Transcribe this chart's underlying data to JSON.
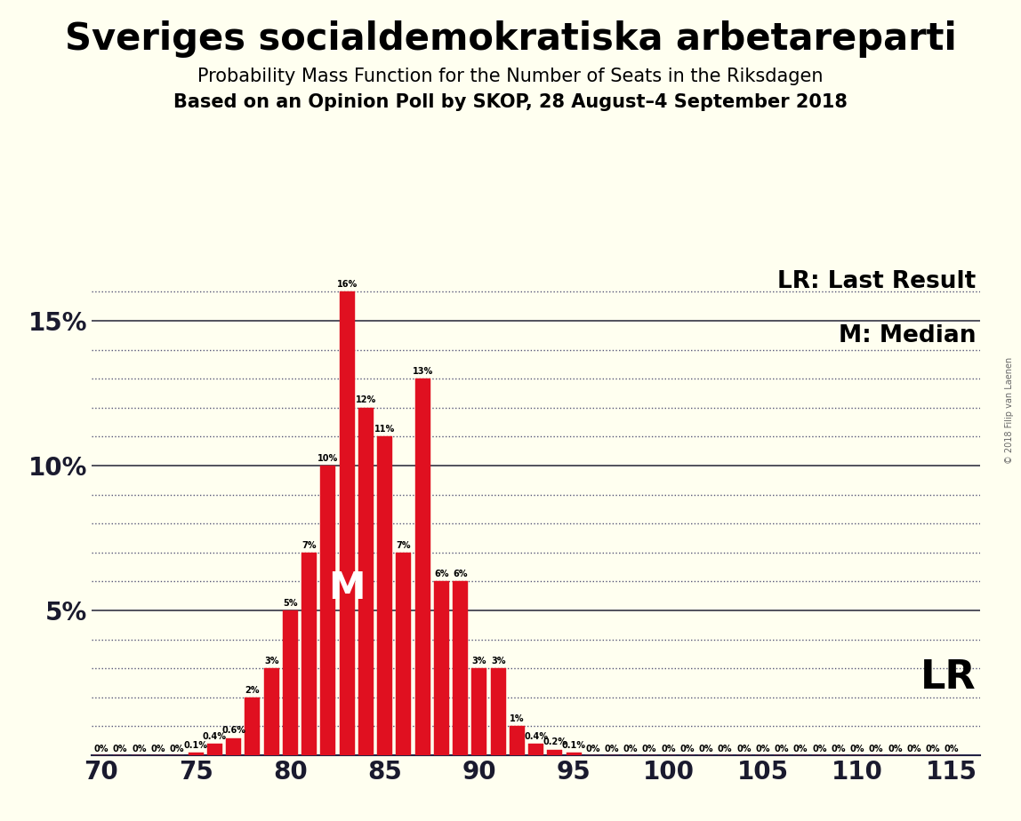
{
  "title": "Sveriges socialdemokratiska arbetareparti",
  "subtitle1": "Probability Mass Function for the Number of Seats in the Riksdagen",
  "subtitle2": "Based on an Opinion Poll by SKOP, 28 August–4 September 2018",
  "watermark": "© 2018 Filip van Laenen",
  "legend_lr": "LR: Last Result",
  "legend_m": "M: Median",
  "seats": [
    70,
    71,
    72,
    73,
    74,
    75,
    76,
    77,
    78,
    79,
    80,
    81,
    82,
    83,
    84,
    85,
    86,
    87,
    88,
    89,
    90,
    91,
    92,
    93,
    94,
    95,
    96,
    97,
    98,
    99,
    100,
    101,
    102,
    103,
    104,
    105,
    106,
    107,
    108,
    109,
    110,
    111,
    112,
    113,
    114,
    115
  ],
  "probs": [
    0.0,
    0.0,
    0.0,
    0.0,
    0.0,
    0.1,
    0.4,
    0.6,
    2.0,
    3.0,
    5.0,
    7.0,
    10.0,
    16.0,
    12.0,
    11.0,
    7.0,
    13.0,
    6.0,
    6.0,
    3.0,
    3.0,
    1.0,
    0.4,
    0.2,
    0.1,
    0.0,
    0.0,
    0.0,
    0.0,
    0.0,
    0.0,
    0.0,
    0.0,
    0.0,
    0.0,
    0.0,
    0.0,
    0.0,
    0.0,
    0.0,
    0.0,
    0.0,
    0.0,
    0.0,
    0.0
  ],
  "bar_color": "#e01020",
  "background_color": "#fffff0",
  "median_seat": 83,
  "lr_label": "LR",
  "xlim_lo": 69.5,
  "xlim_hi": 116.5,
  "ylim_lo": 0,
  "ylim_hi": 17,
  "solid_yticks": [
    5,
    10,
    15
  ],
  "dotted_yticks": [
    1,
    2,
    3,
    4,
    6,
    7,
    8,
    9,
    11,
    12,
    13,
    14,
    16
  ],
  "yticks": [
    0,
    5,
    10,
    15
  ],
  "ytick_labels": [
    "",
    "5%",
    "10%",
    "15%"
  ],
  "xticks": [
    70,
    75,
    80,
    85,
    90,
    95,
    100,
    105,
    110,
    115
  ],
  "title_fontsize": 30,
  "subtitle_fontsize": 15,
  "subtitle2_fontsize": 15,
  "bar_label_fontsize": 7,
  "tick_fontsize": 20,
  "legend_fontsize": 19,
  "lr_text_fontsize": 32,
  "watermark_fontsize": 7,
  "median_fontsize": 30
}
